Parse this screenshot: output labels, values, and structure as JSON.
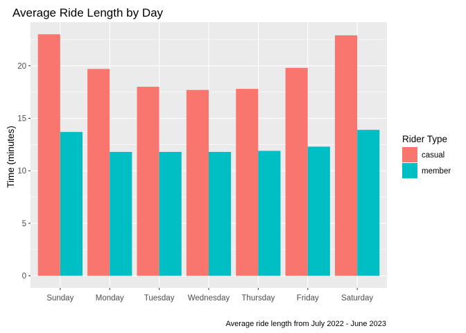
{
  "chart_data": {
    "type": "bar",
    "title": "Average Ride Length by Day",
    "xlabel": "",
    "ylabel": "Time (minutes)",
    "caption": "Average ride length from July 2022 - June 2023",
    "categories": [
      "Sunday",
      "Monday",
      "Tuesday",
      "Wednesday",
      "Thursday",
      "Friday",
      "Saturday"
    ],
    "series": [
      {
        "name": "casual",
        "color": "#F8766D",
        "values": [
          23.0,
          19.7,
          18.0,
          17.7,
          17.8,
          19.8,
          22.9
        ]
      },
      {
        "name": "member",
        "color": "#00BFC4",
        "values": [
          13.7,
          11.8,
          11.8,
          11.8,
          11.9,
          12.3,
          13.9
        ]
      }
    ],
    "ylim": [
      0,
      24
    ],
    "yticks": [
      0,
      5,
      10,
      15,
      20
    ],
    "grid": true,
    "legend": {
      "title": "Rider Type",
      "position": "right"
    },
    "panel_background": "#EBEBEB",
    "grid_color": "#FFFFFF"
  }
}
